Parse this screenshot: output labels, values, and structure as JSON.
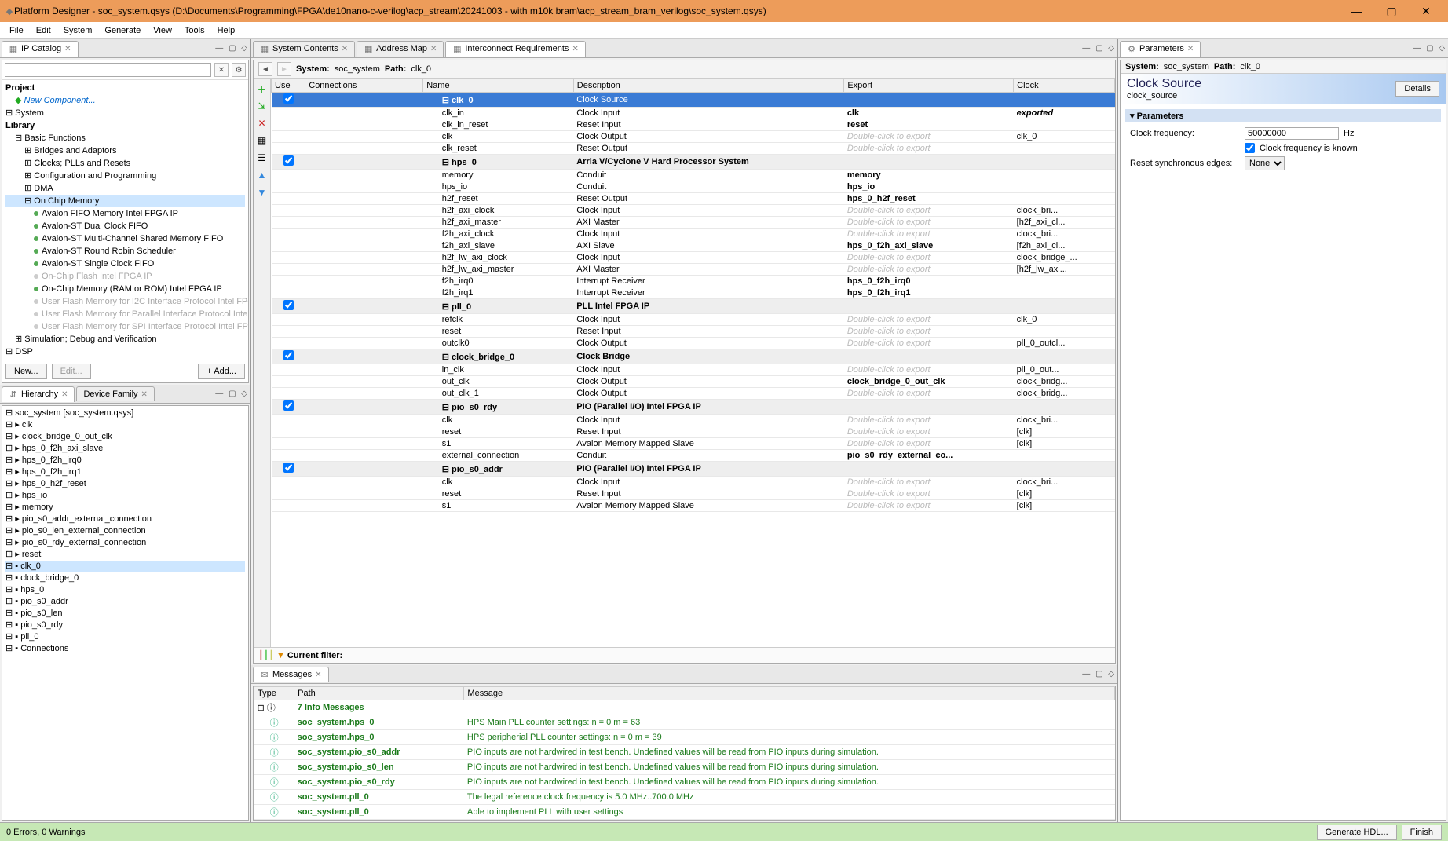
{
  "window": {
    "title": "Platform Designer - soc_system.qsys (D:\\Documents\\Programming\\FPGA\\de10nano-c-verilog\\acp_stream\\20241003 - with m10k bram\\acp_stream_bram_verilog\\soc_system.qsys)",
    "min": "—",
    "max": "▢",
    "close": "✕"
  },
  "menu": [
    "File",
    "Edit",
    "System",
    "Generate",
    "View",
    "Tools",
    "Help"
  ],
  "ip_catalog": {
    "tab": "IP Catalog",
    "project": "Project",
    "new_component": "New Component...",
    "system": "System",
    "library": "Library",
    "basic_functions": "Basic Functions",
    "basic_children": [
      "Bridges and Adaptors",
      "Clocks; PLLs and Resets",
      "Configuration and Programming",
      "DMA"
    ],
    "on_chip": "On Chip Memory",
    "on_chip_children": [
      {
        "t": "Avalon FIFO Memory Intel FPGA IP",
        "g": false
      },
      {
        "t": "Avalon-ST Dual Clock FIFO",
        "g": false
      },
      {
        "t": "Avalon-ST Multi-Channel Shared Memory FIFO",
        "g": false
      },
      {
        "t": "Avalon-ST Round Robin Scheduler",
        "g": false
      },
      {
        "t": "Avalon-ST Single Clock FIFO",
        "g": false
      },
      {
        "t": "On-Chip Flash Intel FPGA IP",
        "g": true
      },
      {
        "t": "On-Chip Memory (RAM or ROM) Intel FPGA IP",
        "g": false
      },
      {
        "t": "User Flash Memory for I2C Interface Protocol Intel FPGA IP",
        "g": true
      },
      {
        "t": "User Flash Memory for Parallel Interface Protocol Intel FPGA IP",
        "g": true
      },
      {
        "t": "User Flash Memory for SPI Interface Protocol Intel FPGA IP",
        "g": true
      }
    ],
    "sim_debug": "Simulation; Debug and Verification",
    "dsp": "DSP",
    "btn_new": "New...",
    "btn_edit": "Edit...",
    "btn_add": "+ Add..."
  },
  "hierarchy": {
    "tab1": "Hierarchy",
    "tab2": "Device Family",
    "root": "soc_system [soc_system.qsys]",
    "items": [
      "clk",
      "clock_bridge_0_out_clk",
      "hps_0_f2h_axi_slave",
      "hps_0_f2h_irq0",
      "hps_0_f2h_irq1",
      "hps_0_h2f_reset",
      "hps_io",
      "memory",
      "pio_s0_addr_external_connection",
      "pio_s0_len_external_connection",
      "pio_s0_rdy_external_connection",
      "reset"
    ],
    "selected": "clk_0",
    "rest": [
      "clock_bridge_0",
      "hps_0",
      "pio_s0_addr",
      "pio_s0_len",
      "pio_s0_rdy",
      "pll_0",
      "Connections"
    ]
  },
  "center_tabs": [
    "System Contents",
    "Address Map",
    "Interconnect Requirements"
  ],
  "pathbar": {
    "system_lbl": "System:",
    "system": "soc_system",
    "path_lbl": "Path:",
    "path": "clk_0"
  },
  "cols": [
    "Use",
    "Connections",
    "Name",
    "Description",
    "Export",
    "Clock"
  ],
  "rows": [
    {
      "chk": true,
      "sel": true,
      "name": "clk_0",
      "desc": "Clock Source",
      "export": "",
      "clock": "",
      "hdr": true
    },
    {
      "name": "clk_in",
      "desc": "Clock Input",
      "export": "clk",
      "clock": "exported",
      "bold_export": true,
      "italic_clock": true
    },
    {
      "name": "clk_in_reset",
      "desc": "Reset Input",
      "export": "reset",
      "bold_export": true
    },
    {
      "name": "clk",
      "desc": "Clock Output",
      "export": "Double-click to export",
      "ghost": true,
      "clock": "clk_0"
    },
    {
      "name": "clk_reset",
      "desc": "Reset Output",
      "export": "Double-click to export",
      "ghost": true
    },
    {
      "chk": true,
      "name": "hps_0",
      "desc": "Arria V/Cyclone V Hard Processor System",
      "hdr": true
    },
    {
      "name": "memory",
      "desc": "Conduit",
      "export": "memory",
      "bold_export": true
    },
    {
      "name": "hps_io",
      "desc": "Conduit",
      "export": "hps_io",
      "bold_export": true
    },
    {
      "name": "h2f_reset",
      "desc": "Reset Output",
      "export": "hps_0_h2f_reset",
      "bold_export": true
    },
    {
      "name": "h2f_axi_clock",
      "desc": "Clock Input",
      "export": "Double-click to export",
      "ghost": true,
      "clock": "clock_bri..."
    },
    {
      "name": "h2f_axi_master",
      "desc": "AXI Master",
      "export": "Double-click to export",
      "ghost": true,
      "clock": "[h2f_axi_cl..."
    },
    {
      "name": "f2h_axi_clock",
      "desc": "Clock Input",
      "export": "Double-click to export",
      "ghost": true,
      "clock": "clock_bri..."
    },
    {
      "name": "f2h_axi_slave",
      "desc": "AXI Slave",
      "export": "hps_0_f2h_axi_slave",
      "bold_export": true,
      "clock": "[f2h_axi_cl..."
    },
    {
      "name": "h2f_lw_axi_clock",
      "desc": "Clock Input",
      "export": "Double-click to export",
      "ghost": true,
      "clock": "clock_bridge_..."
    },
    {
      "name": "h2f_lw_axi_master",
      "desc": "AXI Master",
      "export": "Double-click to export",
      "ghost": true,
      "clock": "[h2f_lw_axi..."
    },
    {
      "name": "f2h_irq0",
      "desc": "Interrupt Receiver",
      "export": "hps_0_f2h_irq0",
      "bold_export": true
    },
    {
      "name": "f2h_irq1",
      "desc": "Interrupt Receiver",
      "export": "hps_0_f2h_irq1",
      "bold_export": true
    },
    {
      "chk": true,
      "name": "pll_0",
      "desc": "PLL Intel FPGA IP",
      "hdr": true
    },
    {
      "name": "refclk",
      "desc": "Clock Input",
      "export": "Double-click to export",
      "ghost": true,
      "clock": "clk_0"
    },
    {
      "name": "reset",
      "desc": "Reset Input",
      "export": "Double-click to export",
      "ghost": true
    },
    {
      "name": "outclk0",
      "desc": "Clock Output",
      "export": "Double-click to export",
      "ghost": true,
      "clock": "pll_0_outcl..."
    },
    {
      "chk": true,
      "name": "clock_bridge_0",
      "desc": "Clock Bridge",
      "hdr": true
    },
    {
      "name": "in_clk",
      "desc": "Clock Input",
      "export": "Double-click to export",
      "ghost": true,
      "clock": "pll_0_out..."
    },
    {
      "name": "out_clk",
      "desc": "Clock Output",
      "export": "clock_bridge_0_out_clk",
      "bold_export": true,
      "clock": "clock_bridg..."
    },
    {
      "name": "out_clk_1",
      "desc": "Clock Output",
      "export": "Double-click to export",
      "ghost": true,
      "clock": "clock_bridg..."
    },
    {
      "chk": true,
      "name": "pio_s0_rdy",
      "desc": "PIO (Parallel I/O) Intel FPGA IP",
      "hdr": true
    },
    {
      "name": "clk",
      "desc": "Clock Input",
      "export": "Double-click to export",
      "ghost": true,
      "clock": "clock_bri..."
    },
    {
      "name": "reset",
      "desc": "Reset Input",
      "export": "Double-click to export",
      "ghost": true,
      "clock": "[clk]"
    },
    {
      "name": "s1",
      "desc": "Avalon Memory Mapped Slave",
      "export": "Double-click to export",
      "ghost": true,
      "clock": "[clk]"
    },
    {
      "name": "external_connection",
      "desc": "Conduit",
      "export": "pio_s0_rdy_external_co...",
      "bold_export": true
    },
    {
      "chk": true,
      "name": "pio_s0_addr",
      "desc": "PIO (Parallel I/O) Intel FPGA IP",
      "hdr": true
    },
    {
      "name": "clk",
      "desc": "Clock Input",
      "export": "Double-click to export",
      "ghost": true,
      "clock": "clock_bri..."
    },
    {
      "name": "reset",
      "desc": "Reset Input",
      "export": "Double-click to export",
      "ghost": true,
      "clock": "[clk]"
    },
    {
      "name": "s1",
      "desc": "Avalon Memory Mapped Slave",
      "export": "Double-click to export",
      "ghost": true,
      "clock": "[clk]"
    }
  ],
  "filter_label": "Current filter:",
  "messages": {
    "tab": "Messages",
    "cols": [
      "Type",
      "Path",
      "Message"
    ],
    "info_count": "7 Info Messages",
    "rows": [
      {
        "p": "soc_system.hps_0",
        "m": "HPS Main PLL counter settings: n = 0 m = 63"
      },
      {
        "p": "soc_system.hps_0",
        "m": "HPS peripherial PLL counter settings: n = 0 m = 39"
      },
      {
        "p": "soc_system.pio_s0_addr",
        "m": "PIO inputs are not hardwired in test bench. Undefined values will be read from PIO inputs during simulation."
      },
      {
        "p": "soc_system.pio_s0_len",
        "m": "PIO inputs are not hardwired in test bench. Undefined values will be read from PIO inputs during simulation."
      },
      {
        "p": "soc_system.pio_s0_rdy",
        "m": "PIO inputs are not hardwired in test bench. Undefined values will be read from PIO inputs during simulation."
      },
      {
        "p": "soc_system.pll_0",
        "m": "The legal reference clock frequency is 5.0 MHz..700.0 MHz"
      },
      {
        "p": "soc_system.pll_0",
        "m": "Able to implement PLL with user settings"
      }
    ]
  },
  "params": {
    "tab": "Parameters",
    "sys_label": "System:",
    "sys": "soc_system",
    "path_label": "Path:",
    "path": "clk_0",
    "title": "Clock Source",
    "subtitle": "clock_source",
    "details": "Details",
    "group": "Parameters",
    "freq_label": "Clock frequency:",
    "freq_val": "50000000",
    "freq_unit": "Hz",
    "known_label": "Clock frequency is known",
    "known_checked": true,
    "reset_label": "Reset synchronous edges:",
    "reset_val": "None"
  },
  "status": {
    "left": "0 Errors, 0 Warnings",
    "btn1": "Generate HDL...",
    "btn2": "Finish"
  },
  "colors": {
    "titlebar": "#ed9c5a",
    "selection": "#3a7bd5",
    "status_bg": "#c6e8b5",
    "info_green": "#1a7a1a"
  }
}
